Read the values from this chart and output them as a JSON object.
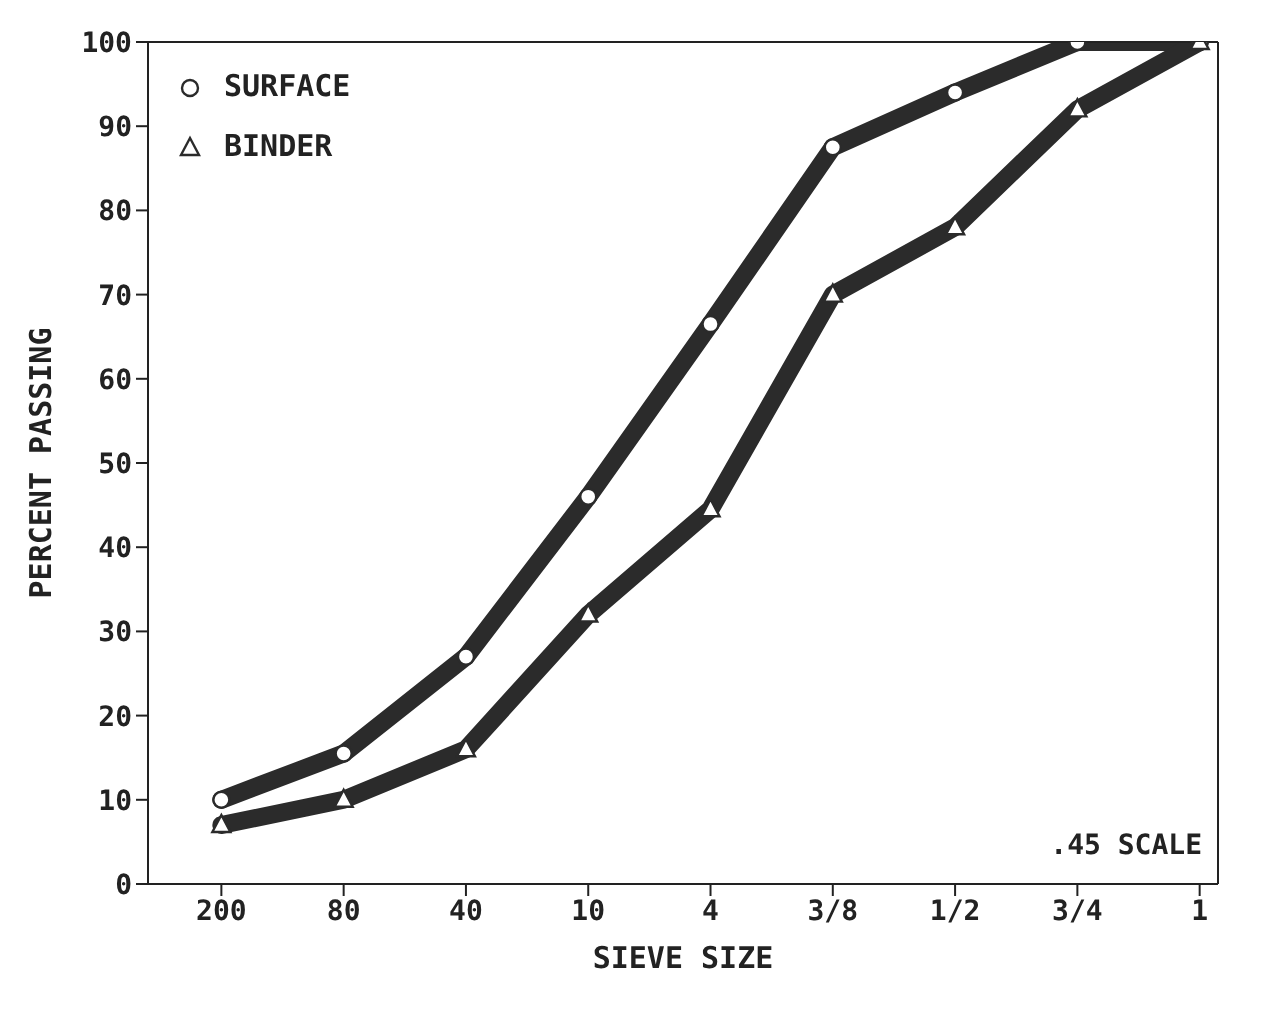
{
  "chart_data": {
    "type": "line",
    "xlabel": "SIEVE SIZE",
    "ylabel": "PERCENT PASSING",
    "categories": [
      "200",
      "80",
      "40",
      "10",
      "4",
      "3/8",
      "1/2",
      "3/4",
      "1"
    ],
    "series": [
      {
        "name": "SURFACE",
        "color": "#2b2b2b",
        "marker": "circle",
        "values": [
          10,
          15.5,
          27,
          46,
          66.5,
          87.5,
          94,
          100,
          100
        ]
      },
      {
        "name": "BINDER",
        "color": "#2b2b2b",
        "marker": "triangle",
        "values": [
          7,
          10,
          16,
          32,
          44.5,
          70,
          78,
          92,
          100
        ]
      }
    ],
    "ylim": [
      0,
      100
    ],
    "yticks": [
      0,
      10,
      20,
      30,
      40,
      50,
      60,
      70,
      80,
      90,
      100
    ],
    "grid": false,
    "legend": "top left",
    "line_style": "solid",
    "annotations": [
      ".45 SCALE"
    ]
  }
}
